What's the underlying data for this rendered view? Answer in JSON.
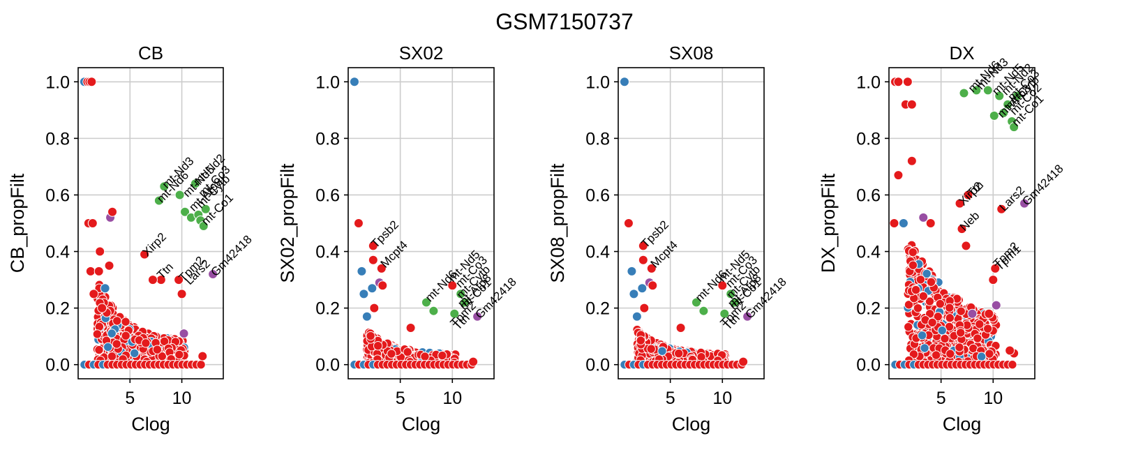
{
  "figure": {
    "suptitle": "GSM7150737"
  },
  "colors": {
    "red": "#e41a1c",
    "blue": "#377eb8",
    "green": "#4daf4a",
    "purple": "#984ea3",
    "grid": "#cccccc",
    "axis": "#000000"
  },
  "chart_data": [
    {
      "type": "scatter",
      "title": "CB",
      "xlabel": "Clog",
      "ylabel": "CB_propFilt",
      "xlim": [
        0,
        14
      ],
      "ylim": [
        -0.05,
        1.05
      ],
      "xticks": [
        5,
        10
      ],
      "yticks": [
        0.0,
        0.2,
        0.4,
        0.6,
        0.8,
        1.0
      ],
      "ytick_labels": [
        "0.0",
        "0.2",
        "0.4",
        "0.6",
        "0.8",
        "1.0"
      ],
      "grid": true,
      "points": [
        {
          "x": 0.6,
          "y": 1.0,
          "c": "blue"
        },
        {
          "x": 0.9,
          "y": 1.0,
          "c": "red"
        },
        {
          "x": 1.1,
          "y": 1.0,
          "c": "red"
        },
        {
          "x": 1.3,
          "y": 1.0,
          "c": "red"
        },
        {
          "x": 1.0,
          "y": 0.5,
          "c": "red"
        },
        {
          "x": 1.4,
          "y": 0.5,
          "c": "red"
        },
        {
          "x": 3.1,
          "y": 0.52,
          "c": "purple"
        },
        {
          "x": 3.3,
          "y": 0.54,
          "c": "red"
        },
        {
          "x": 1.2,
          "y": 0.33,
          "c": "red"
        },
        {
          "x": 2.0,
          "y": 0.33,
          "c": "red"
        },
        {
          "x": 2.1,
          "y": 0.4,
          "c": "red"
        },
        {
          "x": 6.4,
          "y": 0.39,
          "c": "red"
        },
        {
          "x": 1.5,
          "y": 0.25,
          "c": "red"
        },
        {
          "x": 2.6,
          "y": 0.27,
          "c": "blue"
        },
        {
          "x": 2.3,
          "y": 0.2,
          "c": "red"
        },
        {
          "x": 3.0,
          "y": 0.35,
          "c": "red"
        },
        {
          "x": 8.0,
          "y": 0.3,
          "c": "red"
        },
        {
          "x": 7.2,
          "y": 0.3,
          "c": "red"
        },
        {
          "x": 9.7,
          "y": 0.3,
          "c": "red"
        },
        {
          "x": 10.0,
          "y": 0.25,
          "c": "red"
        },
        {
          "x": 10.2,
          "y": 0.11,
          "c": "purple"
        },
        {
          "x": 13.0,
          "y": 0.32,
          "c": "purple"
        },
        {
          "x": 12.0,
          "y": 0.03,
          "c": "red"
        },
        {
          "x": 7.8,
          "y": 0.58,
          "c": "green"
        },
        {
          "x": 8.3,
          "y": 0.63,
          "c": "green"
        },
        {
          "x": 9.8,
          "y": 0.6,
          "c": "green"
        },
        {
          "x": 10.3,
          "y": 0.54,
          "c": "green"
        },
        {
          "x": 10.9,
          "y": 0.52,
          "c": "green"
        },
        {
          "x": 11.3,
          "y": 0.64,
          "c": "green"
        },
        {
          "x": 11.6,
          "y": 0.53,
          "c": "green"
        },
        {
          "x": 11.8,
          "y": 0.51,
          "c": "green"
        },
        {
          "x": 12.1,
          "y": 0.49,
          "c": "green"
        },
        {
          "x": 12.3,
          "y": 0.55,
          "c": "green"
        }
      ],
      "annotations": [
        {
          "text": "mt-Nd3",
          "x": 8.3,
          "y": 0.63
        },
        {
          "text": "mt-Nd6",
          "x": 7.8,
          "y": 0.58
        },
        {
          "text": "mt-Nd5",
          "x": 10.3,
          "y": 0.6
        },
        {
          "text": "mt-Nd2",
          "x": 11.3,
          "y": 0.64
        },
        {
          "text": "mt-Co3",
          "x": 11.8,
          "y": 0.6
        },
        {
          "text": "mt-Atp8",
          "x": 10.9,
          "y": 0.55
        },
        {
          "text": "mt-Cytb",
          "x": 11.6,
          "y": 0.56
        },
        {
          "text": "mt-Co1",
          "x": 12.1,
          "y": 0.5
        },
        {
          "text": "Xirp2",
          "x": 6.4,
          "y": 0.39
        },
        {
          "text": "Ttn",
          "x": 7.8,
          "y": 0.31
        },
        {
          "text": "Tpm2",
          "x": 9.9,
          "y": 0.3
        },
        {
          "text": "Lars2",
          "x": 10.5,
          "y": 0.29
        },
        {
          "text": "Gm42418",
          "x": 13.0,
          "y": 0.32
        }
      ]
    },
    {
      "type": "scatter",
      "title": "SX02",
      "xlabel": "Clog",
      "ylabel": "SX02_propFilt",
      "xlim": [
        0,
        14
      ],
      "ylim": [
        -0.05,
        1.05
      ],
      "xticks": [
        5,
        10
      ],
      "yticks": [
        0.0,
        0.2,
        0.4,
        0.6,
        0.8,
        1.0
      ],
      "ytick_labels": [
        "0.0",
        "0.2",
        "0.4",
        "0.6",
        "0.8",
        "1.0"
      ],
      "grid": true,
      "points": [
        {
          "x": 0.6,
          "y": 1.0,
          "c": "blue"
        },
        {
          "x": 1.0,
          "y": 0.5,
          "c": "red"
        },
        {
          "x": 1.3,
          "y": 0.33,
          "c": "blue"
        },
        {
          "x": 1.5,
          "y": 0.25,
          "c": "blue"
        },
        {
          "x": 2.4,
          "y": 0.42,
          "c": "red"
        },
        {
          "x": 2.4,
          "y": 0.37,
          "c": "red"
        },
        {
          "x": 2.3,
          "y": 0.27,
          "c": "blue"
        },
        {
          "x": 3.0,
          "y": 0.29,
          "c": "purple"
        },
        {
          "x": 3.2,
          "y": 0.34,
          "c": "red"
        },
        {
          "x": 3.3,
          "y": 0.28,
          "c": "red"
        },
        {
          "x": 1.8,
          "y": 0.17,
          "c": "blue"
        },
        {
          "x": 2.5,
          "y": 0.2,
          "c": "red"
        },
        {
          "x": 7.5,
          "y": 0.22,
          "c": "green"
        },
        {
          "x": 8.2,
          "y": 0.19,
          "c": "green"
        },
        {
          "x": 10.2,
          "y": 0.18,
          "c": "green"
        },
        {
          "x": 10.8,
          "y": 0.25,
          "c": "green"
        },
        {
          "x": 11.2,
          "y": 0.22,
          "c": "green"
        },
        {
          "x": 10.0,
          "y": 0.28,
          "c": "red"
        },
        {
          "x": 12.4,
          "y": 0.17,
          "c": "purple"
        },
        {
          "x": 6.0,
          "y": 0.13,
          "c": "red"
        },
        {
          "x": 12.0,
          "y": 0.01,
          "c": "red"
        }
      ],
      "annotations": [
        {
          "text": "Tpsb2",
          "x": 2.4,
          "y": 0.42
        },
        {
          "text": "Mcpt4",
          "x": 3.3,
          "y": 0.35
        },
        {
          "text": "mt-Nd6",
          "x": 7.6,
          "y": 0.23
        },
        {
          "text": "mt-Nd5",
          "x": 9.8,
          "y": 0.3
        },
        {
          "text": "mt-Co3",
          "x": 10.5,
          "y": 0.28
        },
        {
          "text": "mt-Cytb",
          "x": 10.6,
          "y": 0.24
        },
        {
          "text": "mt-Atp8",
          "x": 10.7,
          "y": 0.21
        },
        {
          "text": "mt-Co1",
          "x": 10.9,
          "y": 0.2
        },
        {
          "text": "Tpm2",
          "x": 10.0,
          "y": 0.14
        },
        {
          "text": "Ttn",
          "x": 10.3,
          "y": 0.13
        },
        {
          "text": "Gm42418",
          "x": 12.4,
          "y": 0.17
        }
      ]
    },
    {
      "type": "scatter",
      "title": "SX08",
      "xlabel": "Clog",
      "ylabel": "SX08_propFilt",
      "xlim": [
        0,
        14
      ],
      "ylim": [
        -0.05,
        1.05
      ],
      "xticks": [
        5,
        10
      ],
      "yticks": [
        0.0,
        0.2,
        0.4,
        0.6,
        0.8,
        1.0
      ],
      "ytick_labels": [
        "0.0",
        "0.2",
        "0.4",
        "0.6",
        "0.8",
        "1.0"
      ],
      "grid": true,
      "points": [
        {
          "x": 0.6,
          "y": 1.0,
          "c": "blue"
        },
        {
          "x": 1.0,
          "y": 0.5,
          "c": "red"
        },
        {
          "x": 1.3,
          "y": 0.33,
          "c": "blue"
        },
        {
          "x": 1.5,
          "y": 0.25,
          "c": "blue"
        },
        {
          "x": 2.4,
          "y": 0.42,
          "c": "red"
        },
        {
          "x": 2.4,
          "y": 0.37,
          "c": "red"
        },
        {
          "x": 2.3,
          "y": 0.27,
          "c": "blue"
        },
        {
          "x": 3.0,
          "y": 0.29,
          "c": "purple"
        },
        {
          "x": 3.2,
          "y": 0.34,
          "c": "red"
        },
        {
          "x": 3.3,
          "y": 0.28,
          "c": "red"
        },
        {
          "x": 1.8,
          "y": 0.17,
          "c": "blue"
        },
        {
          "x": 2.5,
          "y": 0.2,
          "c": "red"
        },
        {
          "x": 7.5,
          "y": 0.22,
          "c": "green"
        },
        {
          "x": 8.2,
          "y": 0.19,
          "c": "green"
        },
        {
          "x": 10.2,
          "y": 0.18,
          "c": "green"
        },
        {
          "x": 10.8,
          "y": 0.25,
          "c": "green"
        },
        {
          "x": 11.2,
          "y": 0.22,
          "c": "green"
        },
        {
          "x": 10.0,
          "y": 0.28,
          "c": "red"
        },
        {
          "x": 12.4,
          "y": 0.17,
          "c": "purple"
        },
        {
          "x": 6.0,
          "y": 0.13,
          "c": "red"
        },
        {
          "x": 12.0,
          "y": 0.01,
          "c": "red"
        }
      ],
      "annotations": [
        {
          "text": "Tpsb2",
          "x": 2.4,
          "y": 0.42
        },
        {
          "text": "Mcpt4",
          "x": 3.3,
          "y": 0.35
        },
        {
          "text": "mt-Nd6",
          "x": 7.6,
          "y": 0.23
        },
        {
          "text": "mt-Nd5",
          "x": 9.8,
          "y": 0.3
        },
        {
          "text": "mt-Co3",
          "x": 10.5,
          "y": 0.28
        },
        {
          "text": "mt-Cytb",
          "x": 10.6,
          "y": 0.24
        },
        {
          "text": "mt-Atp8",
          "x": 10.7,
          "y": 0.21
        },
        {
          "text": "mt-Co1",
          "x": 10.9,
          "y": 0.2
        },
        {
          "text": "Tpm2",
          "x": 10.0,
          "y": 0.14
        },
        {
          "text": "Ttn",
          "x": 10.3,
          "y": 0.13
        },
        {
          "text": "Gm42418",
          "x": 12.4,
          "y": 0.17
        }
      ]
    },
    {
      "type": "scatter",
      "title": "DX",
      "xlabel": "Clog",
      "ylabel": "DX_propFilt",
      "xlim": [
        0,
        14
      ],
      "ylim": [
        -0.05,
        1.05
      ],
      "xticks": [
        5,
        10
      ],
      "yticks": [
        0.0,
        0.2,
        0.4,
        0.6,
        0.8,
        1.0
      ],
      "ytick_labels": [
        "0.0",
        "0.2",
        "0.4",
        "0.6",
        "0.8",
        "1.0"
      ],
      "grid": true,
      "points": [
        {
          "x": 0.6,
          "y": 1.0,
          "c": "red"
        },
        {
          "x": 0.9,
          "y": 1.0,
          "c": "red"
        },
        {
          "x": 1.8,
          "y": 1.0,
          "c": "red"
        },
        {
          "x": 1.6,
          "y": 0.92,
          "c": "red"
        },
        {
          "x": 2.2,
          "y": 0.92,
          "c": "red"
        },
        {
          "x": 2.2,
          "y": 0.72,
          "c": "red"
        },
        {
          "x": 0.9,
          "y": 0.67,
          "c": "red"
        },
        {
          "x": 0.5,
          "y": 0.5,
          "c": "red"
        },
        {
          "x": 1.4,
          "y": 0.5,
          "c": "blue"
        },
        {
          "x": 3.3,
          "y": 0.52,
          "c": "purple"
        },
        {
          "x": 4.0,
          "y": 0.5,
          "c": "red"
        },
        {
          "x": 6.8,
          "y": 0.57,
          "c": "red"
        },
        {
          "x": 7.6,
          "y": 0.6,
          "c": "red"
        },
        {
          "x": 7.0,
          "y": 0.48,
          "c": "red"
        },
        {
          "x": 7.4,
          "y": 0.42,
          "c": "red"
        },
        {
          "x": 10.8,
          "y": 0.55,
          "c": "red"
        },
        {
          "x": 13.0,
          "y": 0.57,
          "c": "purple"
        },
        {
          "x": 10.2,
          "y": 0.34,
          "c": "red"
        },
        {
          "x": 10.0,
          "y": 0.3,
          "c": "red"
        },
        {
          "x": 10.3,
          "y": 0.21,
          "c": "purple"
        },
        {
          "x": 8.0,
          "y": 0.18,
          "c": "purple"
        },
        {
          "x": 9.6,
          "y": 0.18,
          "c": "red"
        },
        {
          "x": 12.0,
          "y": 0.04,
          "c": "red"
        },
        {
          "x": 11.6,
          "y": 0.05,
          "c": "red"
        },
        {
          "x": 7.2,
          "y": 0.96,
          "c": "green"
        },
        {
          "x": 8.4,
          "y": 0.97,
          "c": "green"
        },
        {
          "x": 9.5,
          "y": 0.97,
          "c": "green"
        },
        {
          "x": 10.1,
          "y": 0.88,
          "c": "green"
        },
        {
          "x": 10.6,
          "y": 0.95,
          "c": "green"
        },
        {
          "x": 11.0,
          "y": 0.89,
          "c": "green"
        },
        {
          "x": 11.4,
          "y": 0.92,
          "c": "green"
        },
        {
          "x": 11.8,
          "y": 0.86,
          "c": "green"
        },
        {
          "x": 12.0,
          "y": 0.84,
          "c": "green"
        },
        {
          "x": 12.3,
          "y": 0.95,
          "c": "green"
        }
      ],
      "annotations": [
        {
          "text": "mt-Nd6",
          "x": 7.8,
          "y": 0.97
        },
        {
          "text": "mt-Nd3",
          "x": 8.6,
          "y": 0.98
        },
        {
          "text": "mt-Nd5",
          "x": 10.1,
          "y": 0.96
        },
        {
          "text": "mt-Nd2",
          "x": 11.0,
          "y": 0.96
        },
        {
          "text": "mt-Co3",
          "x": 11.6,
          "y": 0.94
        },
        {
          "text": "mt-Atp8",
          "x": 10.6,
          "y": 0.88
        },
        {
          "text": "mt-Cytb",
          "x": 11.4,
          "y": 0.91
        },
        {
          "text": "mt-Co2",
          "x": 11.8,
          "y": 0.89
        },
        {
          "text": "mt-Co1",
          "x": 12.0,
          "y": 0.85
        },
        {
          "text": "Xirp2",
          "x": 6.9,
          "y": 0.57
        },
        {
          "text": "Ttn",
          "x": 7.7,
          "y": 0.6
        },
        {
          "text": "Neb",
          "x": 7.0,
          "y": 0.48
        },
        {
          "text": "Lars2",
          "x": 10.8,
          "y": 0.55
        },
        {
          "text": "Tpm2",
          "x": 10.2,
          "y": 0.35
        },
        {
          "text": "Tpm1",
          "x": 10.4,
          "y": 0.34
        },
        {
          "text": "Gm42418",
          "x": 13.0,
          "y": 0.57
        }
      ]
    }
  ]
}
